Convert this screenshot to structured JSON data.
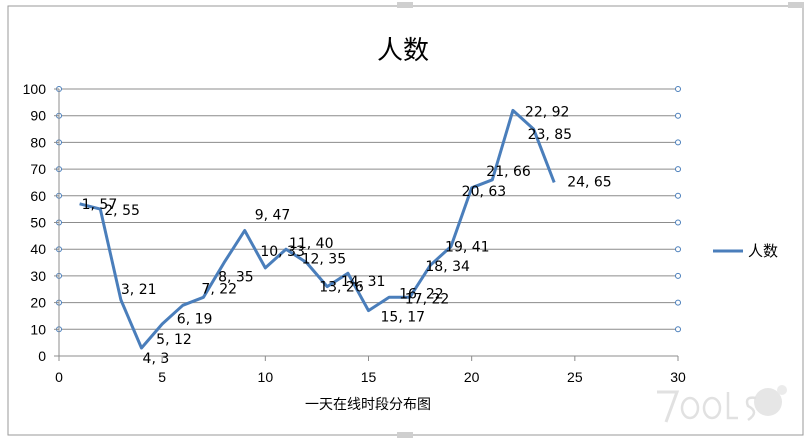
{
  "chart_data": {
    "type": "line",
    "title": "人数",
    "xlabel": "一天在线时段分布图",
    "ylabel": "",
    "xlim": [
      0,
      30
    ],
    "ylim": [
      0,
      100
    ],
    "x_ticks": [
      0,
      5,
      10,
      15,
      20,
      25,
      30
    ],
    "y_ticks": [
      0,
      10,
      20,
      30,
      40,
      50,
      60,
      70,
      80,
      90,
      100
    ],
    "grid": true,
    "legend_position": "right",
    "series": [
      {
        "name": "人数",
        "color": "#4a7ebb",
        "x": [
          1,
          2,
          3,
          4,
          5,
          6,
          7,
          8,
          9,
          10,
          11,
          12,
          13,
          14,
          15,
          16,
          17,
          18,
          19,
          20,
          21,
          22,
          23,
          24
        ],
        "y": [
          57,
          55,
          21,
          3,
          12,
          19,
          22,
          35,
          47,
          33,
          40,
          35,
          26,
          31,
          17,
          22,
          22,
          34,
          41,
          63,
          66,
          92,
          85,
          65
        ],
        "labels": [
          "1, 57",
          "2, 55",
          "3, 21",
          "4, 3",
          "5, 12",
          "6, 19",
          "7, 22",
          "8, 35",
          "9, 47",
          "10, 33",
          "11, 40",
          "12, 35",
          "13, 26",
          "14, 31",
          "15, 17",
          "16, 22",
          "17, 22",
          "18, 34",
          "19, 41",
          "20, 63",
          "21, 66",
          "22, 92",
          "23, 85",
          "24, 65"
        ]
      }
    ]
  }
}
